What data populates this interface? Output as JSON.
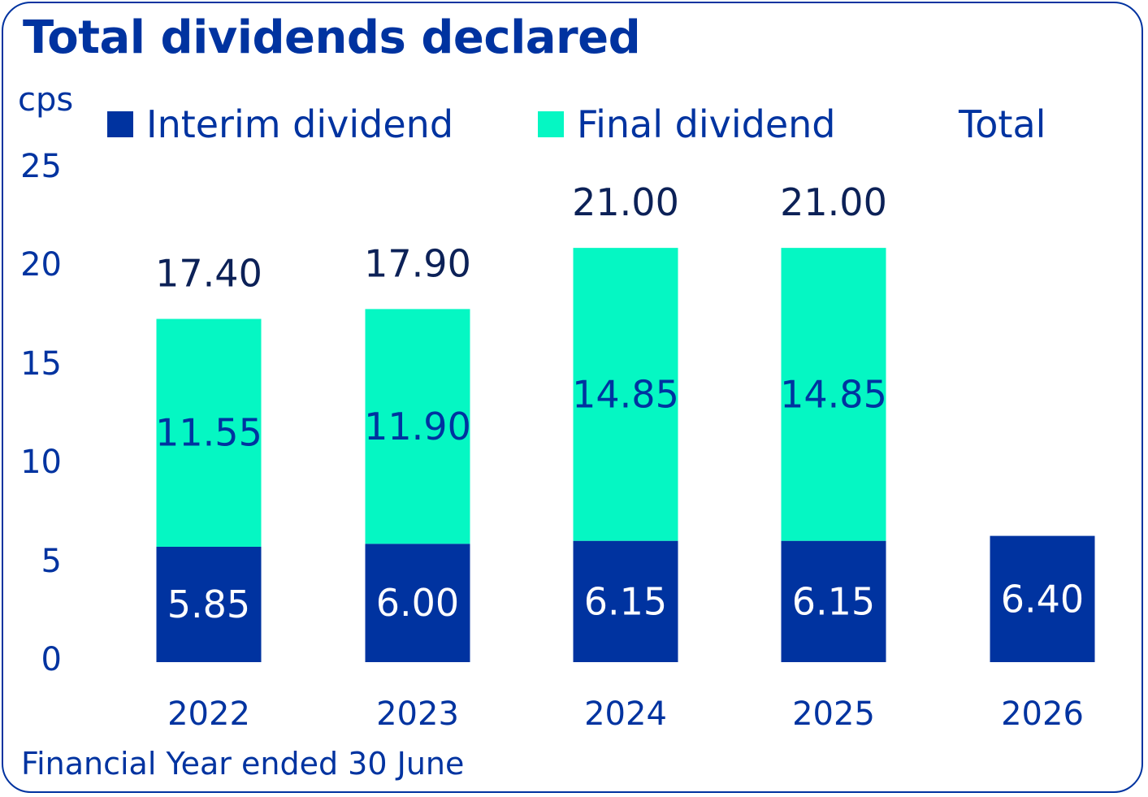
{
  "chart_data": {
    "type": "bar",
    "stacked": true,
    "title": "Total dividends declared",
    "ylabel": "cps",
    "xlabel": "Financial Year ended 30 June",
    "ylim": [
      0,
      25
    ],
    "yticks": [
      "0",
      "5",
      "10",
      "15",
      "20",
      "25"
    ],
    "categories": [
      "2022",
      "2023",
      "2024",
      "2025",
      "2026"
    ],
    "legend": {
      "position": "top",
      "entries": [
        "Interim dividend",
        "Final dividend",
        "Total"
      ]
    },
    "series": [
      {
        "name": "Interim dividend",
        "color": "#0033a0",
        "values": [
          5.85,
          6.0,
          6.15,
          6.15,
          6.4
        ],
        "labels": [
          "5.85",
          "6.00",
          "6.15",
          "6.15",
          "6.40"
        ]
      },
      {
        "name": "Final dividend",
        "color": "#05f7c3",
        "values": [
          11.55,
          11.9,
          14.85,
          14.85,
          null
        ],
        "labels": [
          "11.55",
          "11.90",
          "14.85",
          "14.85",
          ""
        ]
      },
      {
        "name": "Total",
        "values": [
          17.4,
          17.9,
          21.0,
          21.0,
          null
        ],
        "labels": [
          "17.40",
          "17.90",
          "21.00",
          "21.00",
          ""
        ]
      }
    ],
    "grid": false
  },
  "colors": {
    "accent": "#0033a0",
    "final": "#05f7c3",
    "total_label": "#0c2157"
  }
}
